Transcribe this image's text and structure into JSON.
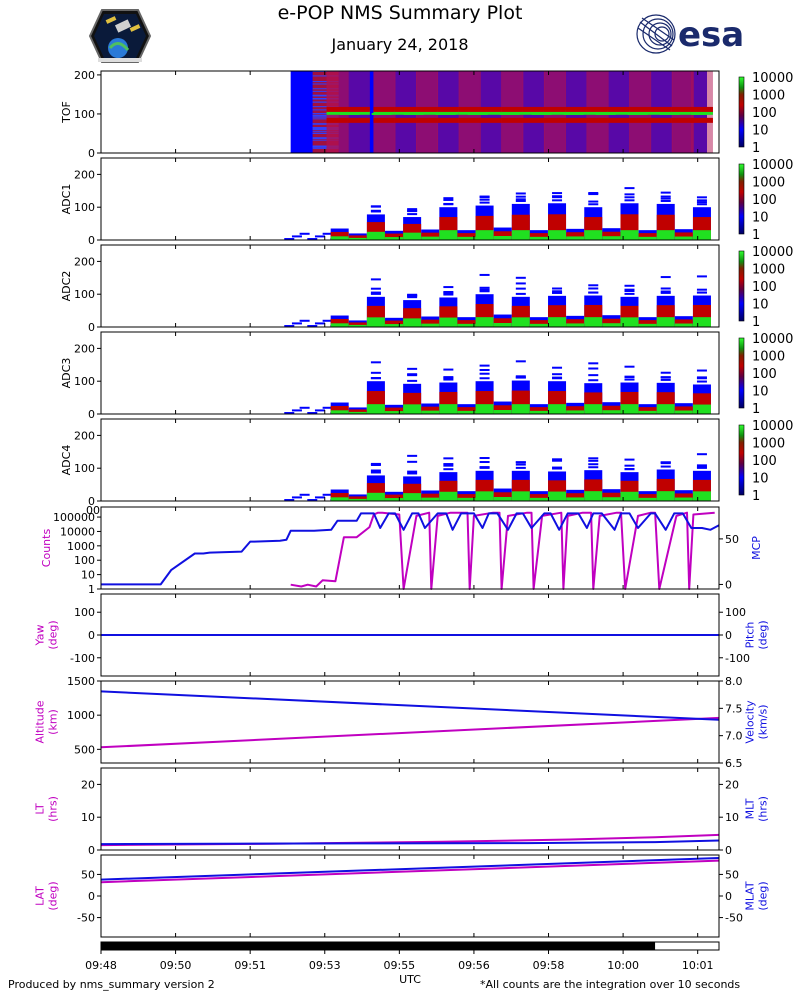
{
  "header": {
    "title": "e-POP NMS Summary Plot",
    "date": "January 24, 2018",
    "esa_logo_text": "esa"
  },
  "footer": {
    "left": "Produced by nms_summary version 2",
    "right": "*All counts are the integration over 10 seconds"
  },
  "colors": {
    "magenta": "#c000c0",
    "blue": "#1010e0",
    "spec_low": "#0000ff",
    "spec_mid": "#c00000",
    "spec_high": "#20e020"
  },
  "chart_data": {
    "type": "multi-panel",
    "x_axis": {
      "label": "UTC",
      "range_min": [
        0,
        14.5
      ],
      "tick_labels": [
        "09:48",
        "09:50",
        "09:51",
        "09:53",
        "09:55",
        "09:56",
        "09:58",
        "10:00",
        "10:01"
      ]
    },
    "spectrograms": [
      {
        "name": "TOF",
        "ylabel": "TOF",
        "ylim": [
          0,
          210
        ],
        "yticks": [
          0,
          100,
          200
        ],
        "colorbar": [
          "10000",
          "1000",
          "100",
          "10",
          "1"
        ],
        "kind": "tof",
        "blue_start_min": 4.45,
        "burst_times_min": [
          5.2,
          7.2,
          9.1,
          11.0,
          13.0
        ]
      },
      {
        "name": "ADC1",
        "ylabel": "ADC1",
        "ylim": [
          0,
          250
        ],
        "yticks": [
          0,
          100,
          200
        ],
        "colorbar": [
          "10000",
          "1000",
          "100",
          "10",
          "1"
        ],
        "kind": "adc",
        "bar_heights": [
          35,
          20,
          78,
          28,
          70,
          32,
          100,
          30,
          105,
          38,
          110,
          30,
          112,
          34,
          100,
          36,
          112,
          30,
          110,
          33,
          100
        ]
      },
      {
        "name": "ADC2",
        "ylabel": "ADC2",
        "ylim": [
          0,
          250
        ],
        "yticks": [
          0,
          100,
          200
        ],
        "colorbar": [
          "10000",
          "1000",
          "100",
          "10",
          "1"
        ],
        "kind": "adc",
        "bar_heights": [
          35,
          20,
          92,
          28,
          82,
          32,
          90,
          30,
          100,
          38,
          92,
          30,
          95,
          34,
          96,
          36,
          92,
          30,
          95,
          33,
          96
        ]
      },
      {
        "name": "ADC3",
        "ylabel": "ADC3",
        "ylim": [
          0,
          250
        ],
        "yticks": [
          0,
          100,
          200
        ],
        "colorbar": [
          "10000",
          "1000",
          "100",
          "10",
          "1"
        ],
        "kind": "adc",
        "bar_heights": [
          35,
          20,
          100,
          28,
          92,
          32,
          96,
          30,
          100,
          38,
          102,
          30,
          100,
          34,
          94,
          36,
          96,
          30,
          95,
          33,
          90
        ]
      },
      {
        "name": "ADC4",
        "ylabel": "ADC4",
        "ylim": [
          0,
          250
        ],
        "yticks": [
          0,
          100,
          200
        ],
        "colorbar": [
          "10000",
          "1000",
          "100",
          "10",
          "1"
        ],
        "kind": "adc",
        "bar_heights": [
          35,
          20,
          78,
          28,
          75,
          32,
          88,
          30,
          92,
          38,
          92,
          30,
          90,
          34,
          94,
          36,
          88,
          30,
          96,
          33,
          92
        ]
      }
    ],
    "line_panels": [
      {
        "name": "counts-mcp",
        "left_label": "Counts",
        "right_label": "MCP",
        "left_scale": "log",
        "left_ylim": [
          1,
          500000
        ],
        "left_ticks": [
          "1",
          "10",
          "100",
          "1000",
          "10000",
          "100000"
        ],
        "right_ylim": [
          -5,
          85
        ],
        "right_ticks": [
          "0",
          "50"
        ],
        "overflow_label": "00",
        "series": [
          {
            "name": "Counts",
            "axis": "left",
            "color": "magenta",
            "x": [
              4.45,
              4.7,
              4.85,
              5.05,
              5.2,
              5.5,
              5.7,
              6.0,
              6.3,
              6.4,
              6.5,
              6.6,
              7.0,
              7.1,
              7.4,
              7.7,
              7.75,
              7.9,
              8.2,
              8.6,
              8.65,
              8.75,
              9.2,
              9.35,
              9.4,
              9.55,
              10.0,
              10.1,
              10.15,
              10.35,
              10.8,
              10.85,
              10.95,
              11.3,
              11.5,
              11.55,
              11.7,
              12.1,
              12.2,
              12.3,
              12.6,
              12.9,
              13.0,
              13.1,
              13.5,
              13.75,
              13.8,
              13.9,
              14.4
            ],
            "y": [
              2,
              1.5,
              2,
              1.5,
              4,
              3.5,
              4000,
              4000,
              20000,
              150000,
              200000,
              200000,
              150000,
              0.8,
              120000,
              200000,
              0.8,
              120000,
              200000,
              200000,
              0.8,
              120000,
              200000,
              200000,
              0.8,
              120000,
              200000,
              200000,
              0.8,
              120000,
              200000,
              0.8,
              120000,
              200000,
              200000,
              0.8,
              120000,
              200000,
              200000,
              0.8,
              120000,
              200000,
              200000,
              0.8,
              120000,
              200000,
              0.8,
              150000,
              200000
            ]
          },
          {
            "name": "MCP",
            "axis": "right",
            "color": "blue",
            "x": [
              0,
              1.2,
              1.4,
              1.65,
              2.2,
              2.4,
              2.55,
              3.3,
              3.5,
              3.6,
              4.2,
              4.35,
              4.45,
              5.0,
              5.4,
              5.55,
              6.0,
              6.1,
              6.4,
              6.55,
              6.75,
              6.9,
              7.1,
              7.3,
              7.45,
              7.6,
              7.9,
              8.1,
              8.25,
              8.45,
              8.75,
              8.95,
              9.1,
              9.3,
              9.55,
              9.75,
              9.9,
              10.1,
              10.4,
              10.55,
              10.75,
              10.95,
              11.2,
              11.4,
              11.55,
              11.75,
              12.05,
              12.2,
              12.4,
              12.6,
              12.9,
              13.0,
              13.25,
              13.45,
              13.65,
              13.85,
              14.1,
              14.3,
              14.5
            ],
            "y": [
              0,
              0,
              0,
              16,
              34,
              34,
              35,
              36,
              47,
              47,
              48,
              49,
              59,
              59,
              60,
              70,
              70,
              78,
              78,
              62,
              78,
              78,
              60,
              78,
              78,
              62,
              78,
              78,
              60,
              78,
              78,
              62,
              78,
              78,
              60,
              78,
              78,
              62,
              78,
              78,
              60,
              78,
              78,
              62,
              78,
              78,
              60,
              78,
              78,
              62,
              78,
              78,
              60,
              78,
              78,
              62,
              62,
              60,
              65
            ]
          }
        ]
      },
      {
        "name": "yaw-pitch",
        "left_label": "Yaw\n(deg)",
        "right_label": "Pitch\n(deg)",
        "left_ylim": [
          -180,
          180
        ],
        "left_ticks": [
          "-100",
          "0",
          "100"
        ],
        "right_ylim": [
          -180,
          180
        ],
        "right_ticks": [
          "-100",
          "0",
          "100"
        ],
        "series": [
          {
            "name": "Yaw",
            "axis": "left",
            "color": "magenta",
            "x": [
              0,
              14.5
            ],
            "y": [
              0,
              0
            ]
          },
          {
            "name": "Pitch",
            "axis": "right",
            "color": "blue",
            "x": [
              0,
              14.5
            ],
            "y": [
              0,
              0
            ]
          }
        ]
      },
      {
        "name": "altitude-velocity",
        "left_label": "Altitude\n(km)",
        "right_label": "Velocity\n(km/s)",
        "left_ylim": [
          300,
          1500
        ],
        "left_ticks": [
          "500",
          "1000",
          "1500"
        ],
        "right_ylim": [
          6.5,
          8.0
        ],
        "right_ticks": [
          "6.5",
          "7.0",
          "7.5",
          "8.0"
        ],
        "series": [
          {
            "name": "Altitude",
            "axis": "left",
            "color": "magenta",
            "x": [
              0,
              14.5
            ],
            "y": [
              530,
              960
            ]
          },
          {
            "name": "Velocity",
            "axis": "right",
            "color": "blue",
            "x": [
              0,
              14.5
            ],
            "y": [
              7.81,
              7.29
            ]
          }
        ]
      },
      {
        "name": "lt-mlt",
        "left_label": "LT\n(hrs)",
        "right_label": "MLT\n(hrs)",
        "left_ylim": [
          0,
          25
        ],
        "left_ticks": [
          "0",
          "10",
          "20"
        ],
        "right_ylim": [
          0,
          25
        ],
        "right_ticks": [
          "0",
          "10",
          "20"
        ],
        "series": [
          {
            "name": "LT",
            "axis": "left",
            "color": "magenta",
            "x": [
              0,
              4,
              8,
              11,
              13,
              14.5
            ],
            "y": [
              1.5,
              1.9,
              2.5,
              3.2,
              3.9,
              4.6
            ]
          },
          {
            "name": "MLT",
            "axis": "right",
            "color": "blue",
            "x": [
              0,
              6,
              10,
              13,
              14.5
            ],
            "y": [
              1.8,
              2.0,
              2.1,
              2.4,
              2.9
            ]
          }
        ]
      },
      {
        "name": "lat-mlat",
        "left_label": "LAT\n(deg)",
        "right_label": "MLAT\n(deg)",
        "left_ylim": [
          -95,
          95
        ],
        "left_ticks": [
          "-50",
          "0",
          "50"
        ],
        "right_ylim": [
          -95,
          95
        ],
        "right_ticks": [
          "-50",
          "0",
          "50"
        ],
        "series": [
          {
            "name": "LAT",
            "axis": "left",
            "color": "magenta",
            "x": [
              0,
              14.5
            ],
            "y": [
              32,
              82
            ]
          },
          {
            "name": "MLAT",
            "axis": "right",
            "color": "blue",
            "x": [
              0,
              14.5
            ],
            "y": [
              38,
              88
            ]
          }
        ]
      }
    ],
    "coverage_bar": {
      "filled_until_min": 13.0
    }
  }
}
